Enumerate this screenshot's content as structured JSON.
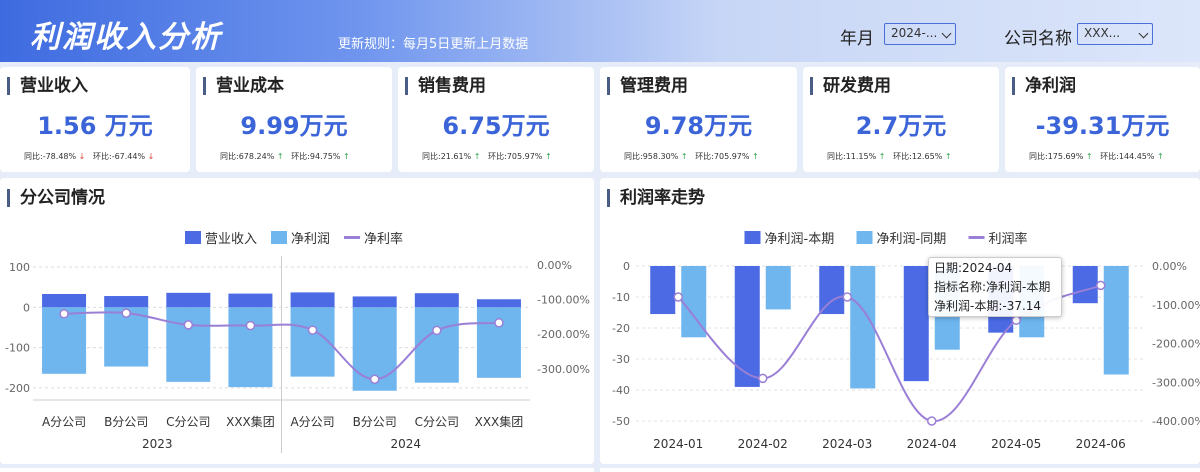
{
  "header": {
    "title": "利润收入分析",
    "rule": "更新规则：每月5日更新上月数据",
    "filters": [
      {
        "label": "年月",
        "value": "2024-..."
      },
      {
        "label": "公司名称",
        "value": "XXX..."
      }
    ]
  },
  "kpis": [
    {
      "name": "营业收入",
      "value": "1.56 万元",
      "yoy_label": "同比:",
      "yoy": "-78.48%",
      "yoy_dir": "down",
      "mom_label": "环比:",
      "mom": "-67.44%",
      "mom_dir": "down"
    },
    {
      "name": "营业成本",
      "value": "9.99万元",
      "yoy_label": "同比:",
      "yoy": "678.24%",
      "yoy_dir": "up",
      "mom_label": "环比:",
      "mom": "94.75%",
      "mom_dir": "up"
    },
    {
      "name": "销售费用",
      "value": "6.75万元",
      "yoy_label": "同比:",
      "yoy": "21.61%",
      "yoy_dir": "up",
      "mom_label": "环比:",
      "mom": "705.97%",
      "mom_dir": "up"
    },
    {
      "name": "管理费用",
      "value": "9.78万元",
      "yoy_label": "同比:",
      "yoy": "958.30%",
      "yoy_dir": "up",
      "mom_label": "环比:",
      "mom": "705.97%",
      "mom_dir": "up"
    },
    {
      "name": "研发费用",
      "value": "2.7万元",
      "yoy_label": "同比:",
      "yoy": "11.15%",
      "yoy_dir": "up",
      "mom_label": "环比:",
      "mom": "12.65%",
      "mom_dir": "up"
    },
    {
      "name": "净利润",
      "value": "-39.31万元",
      "yoy_label": "同比:",
      "yoy": "175.69%",
      "yoy_dir": "up",
      "mom_label": "环比:",
      "mom": "144.45%",
      "mom_dir": "up"
    }
  ],
  "panels": {
    "left_title": "分公司情况",
    "right_title": "利润率走势"
  },
  "colors": {
    "bar_dark": "#4b6ae3",
    "bar_light": "#6fb5ee",
    "line": "#9a7fd6",
    "kpi_value": "#3a64d8"
  },
  "tooltip": {
    "line1": "日期:2024-04",
    "line2": "指标名称:净利润-本期",
    "line3": "净利润-本期:-37.14"
  },
  "chart_data": [
    {
      "type": "bar",
      "categories": [
        "A分公司",
        "B分公司",
        "C分公司",
        "XXX集团",
        "A分公司",
        "B分公司",
        "C分公司",
        "XXX集团"
      ],
      "groups": [
        "2023",
        "2024"
      ],
      "series": [
        {
          "name": "营业收入",
          "values": [
            33,
            28,
            36,
            34,
            37,
            27,
            35,
            20
          ],
          "axis": "left"
        },
        {
          "name": "净利润",
          "values": [
            -165,
            -147,
            -185,
            -198,
            -172,
            -207,
            -187,
            -175
          ],
          "axis": "left"
        },
        {
          "name": "净利率",
          "values": [
            -141,
            -139,
            -173,
            -175,
            -188,
            -330,
            -189,
            -167
          ],
          "axis": "right"
        }
      ],
      "left_ticks": [
        "100",
        "0",
        "-100",
        "-200"
      ],
      "right_ticks": [
        "0.00%",
        "-100.00%",
        "-200.00%",
        "-300.00%"
      ],
      "ylim_left": [
        -230,
        105
      ],
      "ylim_right": [
        -390,
        0
      ],
      "legend": "top-center",
      "grid": true
    },
    {
      "type": "bar",
      "categories": [
        "2024-01",
        "2024-02",
        "2024-03",
        "2024-04",
        "2024-05",
        "2024-06"
      ],
      "series": [
        {
          "name": "净利润-本期",
          "values": [
            -15.5,
            -39,
            -15.5,
            -37.14,
            -21.5,
            -12
          ],
          "axis": "left"
        },
        {
          "name": "净利润-同期",
          "values": [
            -23,
            -14,
            -39.5,
            -27,
            -23,
            -35
          ],
          "axis": "left"
        },
        {
          "name": "利润率",
          "values": [
            -80,
            -290,
            -80,
            -400,
            -140,
            -50
          ],
          "axis": "right"
        }
      ],
      "left_ticks": [
        "0",
        "-10",
        "-20",
        "-30",
        "-40",
        "-50"
      ],
      "right_ticks": [
        "0.00%",
        "-100.00%",
        "-200.00%",
        "-300.00%",
        "-400.00%"
      ],
      "ylim_left": [
        -50,
        0
      ],
      "ylim_right": [
        -400,
        0
      ],
      "legend": "top-center",
      "grid": true
    }
  ]
}
